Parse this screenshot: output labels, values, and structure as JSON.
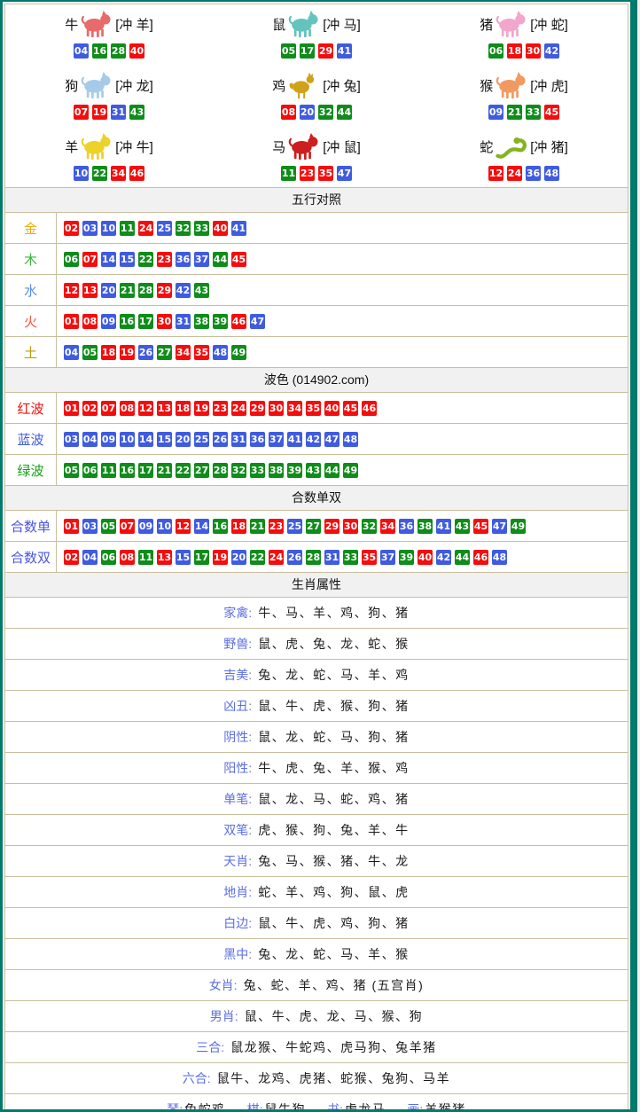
{
  "palette": {
    "teal": "#007a6d",
    "tan": "#c9bf9f",
    "header_bg": "#f1f1f1",
    "edge_pink": "#f7edef",
    "red": "#f50d0d",
    "blue": "#3f5be0",
    "green": "#0f8c1a",
    "gold": "#eead0c",
    "wood_green": "#3cb83c",
    "water_blue": "#5b8bf5",
    "fire_red": "#fa5540",
    "earth_gold": "#c29a0c",
    "wave_red": "#f50d0d",
    "wave_blue": "#3f5be0",
    "wave_green": "#17a017",
    "sum_blue": "#4a55e0",
    "attr_blue": "#5b6ee1"
  },
  "ball_color_groups": {
    "red": [
      1,
      2,
      7,
      8,
      12,
      13,
      18,
      19,
      23,
      24,
      29,
      30,
      34,
      35,
      40,
      45,
      46
    ],
    "blue": [
      3,
      4,
      9,
      10,
      14,
      15,
      20,
      25,
      26,
      31,
      36,
      37,
      41,
      42,
      47,
      48
    ],
    "green": [
      5,
      6,
      11,
      16,
      17,
      21,
      22,
      27,
      28,
      32,
      33,
      38,
      39,
      43,
      44,
      49
    ]
  },
  "zodiac": {
    "items": [
      {
        "key": "ox",
        "name": "牛",
        "clash": "[冲 羊]",
        "icon": "ox-icon",
        "shape": "quadruped",
        "icon_color": "#e86a6a",
        "numbers": [
          "04",
          "16",
          "28",
          "40"
        ]
      },
      {
        "key": "rat",
        "name": "鼠",
        "clash": "[冲 马]",
        "icon": "rat-icon",
        "shape": "quadruped",
        "icon_color": "#62c4bc",
        "numbers": [
          "05",
          "17",
          "29",
          "41"
        ]
      },
      {
        "key": "pig",
        "name": "猪",
        "clash": "[冲 蛇]",
        "icon": "pig-icon",
        "shape": "quadruped",
        "icon_color": "#f2a6cb",
        "numbers": [
          "06",
          "18",
          "30",
          "42"
        ]
      },
      {
        "key": "dog",
        "name": "狗",
        "clash": "[冲 龙]",
        "icon": "dog-icon",
        "shape": "quadruped",
        "icon_color": "#a6cbe8",
        "numbers": [
          "07",
          "19",
          "31",
          "43"
        ]
      },
      {
        "key": "rooster",
        "name": "鸡",
        "clash": "[冲 兔]",
        "icon": "rooster-icon",
        "shape": "bird",
        "icon_color": "#cfa21a",
        "numbers": [
          "08",
          "20",
          "32",
          "44"
        ]
      },
      {
        "key": "monkey",
        "name": "猴",
        "clash": "[冲 虎]",
        "icon": "monkey-icon",
        "shape": "quadruped",
        "icon_color": "#f09a62",
        "numbers": [
          "09",
          "21",
          "33",
          "45"
        ]
      },
      {
        "key": "goat",
        "name": "羊",
        "clash": "[冲 牛]",
        "icon": "goat-icon",
        "shape": "quadruped",
        "icon_color": "#ecd22a",
        "numbers": [
          "10",
          "22",
          "34",
          "46"
        ]
      },
      {
        "key": "horse",
        "name": "马",
        "clash": "[冲 鼠]",
        "icon": "horse-icon",
        "shape": "quadruped",
        "icon_color": "#cc1f1f",
        "numbers": [
          "11",
          "23",
          "35",
          "47"
        ]
      },
      {
        "key": "snake",
        "name": "蛇",
        "clash": "[冲 猪]",
        "icon": "snake-icon",
        "shape": "snake",
        "icon_color": "#84b421",
        "numbers": [
          "12",
          "24",
          "36",
          "48"
        ]
      }
    ]
  },
  "sections": [
    {
      "id": "five-elements",
      "title": "五行对照",
      "rows": [
        {
          "key": "gold",
          "label": "金",
          "label_color": "gold",
          "numbers": [
            "02",
            "03",
            "10",
            "11",
            "24",
            "25",
            "32",
            "33",
            "40",
            "41"
          ]
        },
        {
          "key": "wood",
          "label": "木",
          "label_color": "wood_green",
          "numbers": [
            "06",
            "07",
            "14",
            "15",
            "22",
            "23",
            "36",
            "37",
            "44",
            "45"
          ]
        },
        {
          "key": "water",
          "label": "水",
          "label_color": "water_blue",
          "numbers": [
            "12",
            "13",
            "20",
            "21",
            "28",
            "29",
            "42",
            "43"
          ]
        },
        {
          "key": "fire",
          "label": "火",
          "label_color": "fire_red",
          "numbers": [
            "01",
            "08",
            "09",
            "16",
            "17",
            "30",
            "31",
            "38",
            "39",
            "46",
            "47"
          ]
        },
        {
          "key": "earth",
          "label": "土",
          "label_color": "earth_gold",
          "numbers": [
            "04",
            "05",
            "18",
            "19",
            "26",
            "27",
            "34",
            "35",
            "48",
            "49"
          ]
        }
      ]
    },
    {
      "id": "wave-colors",
      "title": "波色 (014902.com)",
      "rows": [
        {
          "key": "red-wave",
          "label": "红波",
          "label_color": "wave_red",
          "numbers": [
            "01",
            "02",
            "07",
            "08",
            "12",
            "13",
            "18",
            "19",
            "23",
            "24",
            "29",
            "30",
            "34",
            "35",
            "40",
            "45",
            "46"
          ]
        },
        {
          "key": "blue-wave",
          "label": "蓝波",
          "label_color": "wave_blue",
          "numbers": [
            "03",
            "04",
            "09",
            "10",
            "14",
            "15",
            "20",
            "25",
            "26",
            "31",
            "36",
            "37",
            "41",
            "42",
            "47",
            "48"
          ]
        },
        {
          "key": "green-wave",
          "label": "绿波",
          "label_color": "wave_green",
          "numbers": [
            "05",
            "06",
            "11",
            "16",
            "17",
            "21",
            "22",
            "27",
            "28",
            "32",
            "33",
            "38",
            "39",
            "43",
            "44",
            "49"
          ]
        }
      ]
    },
    {
      "id": "sum-odd-even",
      "title": "合数单双",
      "rows": [
        {
          "key": "sum-odd",
          "label": "合数单",
          "label_color": "sum_blue",
          "numbers": [
            "01",
            "03",
            "05",
            "07",
            "09",
            "10",
            "12",
            "14",
            "16",
            "18",
            "21",
            "23",
            "25",
            "27",
            "29",
            "30",
            "32",
            "34",
            "36",
            "38",
            "41",
            "43",
            "45",
            "47",
            "49"
          ]
        },
        {
          "key": "sum-even",
          "label": "合数双",
          "label_color": "sum_blue",
          "numbers": [
            "02",
            "04",
            "06",
            "08",
            "11",
            "13",
            "15",
            "17",
            "19",
            "20",
            "22",
            "24",
            "26",
            "28",
            "31",
            "33",
            "35",
            "37",
            "39",
            "40",
            "42",
            "44",
            "46",
            "48"
          ]
        }
      ]
    }
  ],
  "attributes": {
    "title": "生肖属性",
    "rows": [
      {
        "key": "domestic",
        "label": "家禽",
        "value": "牛、马、羊、鸡、狗、猪"
      },
      {
        "key": "wild",
        "label": "野兽",
        "value": "鼠、虎、兔、龙、蛇、猴"
      },
      {
        "key": "auspicious",
        "label": "吉美",
        "value": "兔、龙、蛇、马、羊、鸡"
      },
      {
        "key": "inauspicious",
        "label": "凶丑",
        "value": "鼠、牛、虎、猴、狗、猪"
      },
      {
        "key": "yin",
        "label": "阴性",
        "value": "鼠、龙、蛇、马、狗、猪"
      },
      {
        "key": "yang",
        "label": "阳性",
        "value": "牛、虎、兔、羊、猴、鸡"
      },
      {
        "key": "single-stroke",
        "label": "单笔",
        "value": "鼠、龙、马、蛇、鸡、猪"
      },
      {
        "key": "double-stroke",
        "label": "双笔",
        "value": "虎、猴、狗、兔、羊、牛"
      },
      {
        "key": "sky",
        "label": "天肖",
        "value": "兔、马、猴、猪、牛、龙"
      },
      {
        "key": "earth",
        "label": "地肖",
        "value": "蛇、羊、鸡、狗、鼠、虎"
      },
      {
        "key": "white-edge",
        "label": "白边",
        "value": "鼠、牛、虎、鸡、狗、猪"
      },
      {
        "key": "black-center",
        "label": "黑中",
        "value": "兔、龙、蛇、马、羊、猴"
      },
      {
        "key": "female",
        "label": "女肖",
        "value": "兔、蛇、羊、鸡、猪 (五宫肖)"
      },
      {
        "key": "male",
        "label": "男肖",
        "value": "鼠、牛、虎、龙、马、猴、狗"
      },
      {
        "key": "triple-harmony",
        "label": "三合",
        "value": "鼠龙猴、牛蛇鸡、虎马狗、兔羊猪"
      },
      {
        "key": "six-harmony",
        "label": "六合",
        "value": "鼠牛、龙鸡、虎猪、蛇猴、兔狗、马羊"
      }
    ],
    "footer_segments": [
      {
        "key": "zither",
        "label": "琴",
        "value": "兔蛇鸡"
      },
      {
        "key": "chess",
        "label": "棋",
        "value": "鼠牛狗"
      },
      {
        "key": "book",
        "label": "书",
        "value": "虎龙马"
      },
      {
        "key": "painting",
        "label": "画",
        "value": "羊猴猪"
      }
    ]
  }
}
